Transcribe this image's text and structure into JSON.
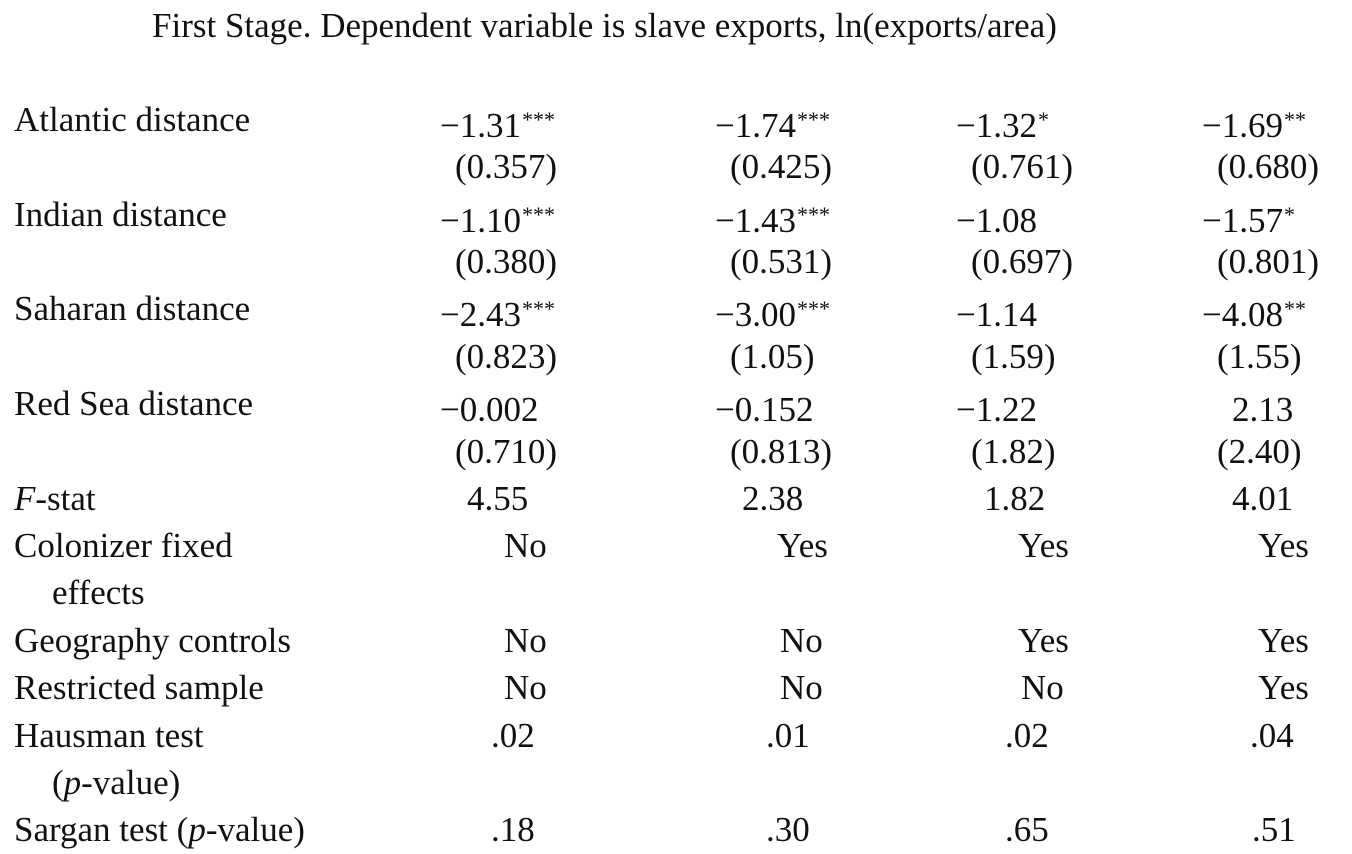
{
  "title": "First Stage. Dependent variable is slave exports, ln(exports/area)",
  "rows": {
    "atlantic": {
      "label": "Atlantic distance",
      "coef": [
        "−1.31",
        "−1.74",
        "−1.32",
        "−1.69"
      ],
      "stars": [
        "***",
        "***",
        "*",
        "**"
      ],
      "se": [
        "(0.357)",
        "(0.425)",
        "(0.761)",
        "(0.680)"
      ]
    },
    "indian": {
      "label": "Indian distance",
      "coef": [
        "−1.10",
        "−1.43",
        "−1.08",
        "−1.57"
      ],
      "stars": [
        "***",
        "***",
        "",
        "*"
      ],
      "se": [
        "(0.380)",
        "(0.531)",
        "(0.697)",
        "(0.801)"
      ]
    },
    "saharan": {
      "label": "Saharan distance",
      "coef": [
        "−2.43",
        "−3.00",
        "−1.14",
        "−4.08"
      ],
      "stars": [
        "***",
        "***",
        "",
        "**"
      ],
      "se": [
        "(0.823)",
        "(1.05)",
        "(1.59)",
        "(1.55)"
      ]
    },
    "redsea": {
      "label": "Red Sea distance",
      "coef": [
        "−0.002",
        "−0.152",
        "−1.22",
        "2.13"
      ],
      "stars": [
        "",
        "",
        "",
        ""
      ],
      "se": [
        "(0.710)",
        "(0.813)",
        "(1.82)",
        "(2.40)"
      ]
    },
    "fstat": {
      "label_italic": "F",
      "label_rest": "-stat",
      "values": [
        "4.55",
        "2.38",
        "1.82",
        "4.01"
      ]
    },
    "colonizer": {
      "label_line1": "Colonizer fixed",
      "label_line2": "effects",
      "values": [
        "No",
        "Yes",
        "Yes",
        "Yes"
      ]
    },
    "geography": {
      "label": "Geography controls",
      "values": [
        "No",
        "No",
        "Yes",
        "Yes"
      ]
    },
    "restricted": {
      "label": "Restricted sample",
      "values": [
        "No",
        "No",
        "No",
        "Yes"
      ]
    },
    "hausman": {
      "label_line1": "Hausman test",
      "label_line2_open": "(",
      "label_line2_italic": "p",
      "label_line2_rest": "-value)",
      "values": [
        ".02",
        ".01",
        ".02",
        ".04"
      ]
    },
    "sargan": {
      "label_prefix": "Sargan test (",
      "label_italic": "p",
      "label_rest": "-value)",
      "values": [
        ".18",
        ".30",
        ".65",
        ".51"
      ]
    }
  }
}
